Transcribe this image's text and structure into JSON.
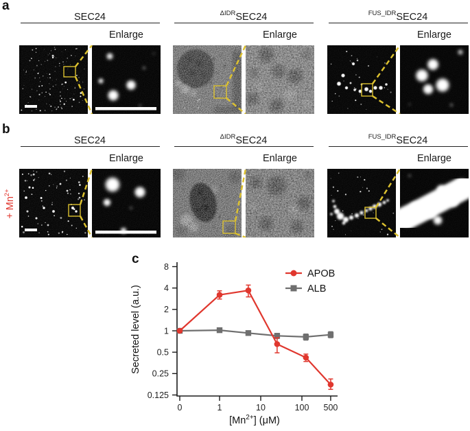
{
  "panel_a": {
    "label": "a",
    "groups": [
      {
        "title_prefix": "",
        "title": "SEC24",
        "enlarge_label": "Enlarge"
      },
      {
        "title_prefix": "ΔIDR",
        "title": "SEC24",
        "enlarge_label": "Enlarge"
      },
      {
        "title_prefix": "FUS_IDR",
        "title": "SEC24",
        "enlarge_label": "Enlarge"
      }
    ]
  },
  "panel_b": {
    "label": "b",
    "condition_label": "+ Mn",
    "condition_sup": "2+",
    "groups": [
      {
        "title_prefix": "",
        "title": "SEC24",
        "enlarge_label": "Enlarge"
      },
      {
        "title_prefix": "ΔIDR",
        "title": "SEC24",
        "enlarge_label": "Enlarge"
      },
      {
        "title_prefix": "FUS_IDR",
        "title": "SEC24",
        "enlarge_label": "Enlarge"
      }
    ]
  },
  "panel_c": {
    "label": "c"
  },
  "chart_data": {
    "type": "line",
    "x": [
      0,
      1,
      5,
      25,
      125,
      500
    ],
    "x_scale": "log10 with zero break",
    "x_tick_values": [
      0,
      1,
      10,
      100,
      500
    ],
    "x_tick_labels": [
      "0",
      "1",
      "10",
      "100",
      "500"
    ],
    "y_scale": "log2",
    "y_ticks": [
      8,
      4,
      2,
      1,
      0.5,
      0.25,
      0.125
    ],
    "ylim": [
      0.125,
      8
    ],
    "ylabel": "Secreted level (a.u.)",
    "xlabel_parts": [
      "[Mn",
      "2+",
      "] (μM)"
    ],
    "series": [
      {
        "name": "APOB",
        "color": "#e0372e",
        "marker": "circle",
        "values": [
          1,
          3.2,
          3.7,
          0.65,
          0.42,
          0.175
        ],
        "err_low": [
          1,
          2.8,
          3.0,
          0.49,
          0.37,
          0.15
        ],
        "err_high": [
          1,
          3.65,
          4.4,
          0.8,
          0.47,
          0.21
        ]
      },
      {
        "name": "ALB",
        "color": "#6f6f6f",
        "marker": "square",
        "values": [
          1,
          1.02,
          0.93,
          0.85,
          0.82,
          0.88
        ],
        "err_low": [
          1,
          0.95,
          0.88,
          0.78,
          0.74,
          0.8
        ],
        "err_high": [
          1,
          1.1,
          0.98,
          0.92,
          0.9,
          0.97
        ]
      }
    ],
    "legend_position": "top-right",
    "grid": false,
    "title": ""
  },
  "colors": {
    "highlight_yellow": "#dcc12f",
    "accent_red": "#e0372e",
    "series_gray": "#6f6f6f"
  }
}
